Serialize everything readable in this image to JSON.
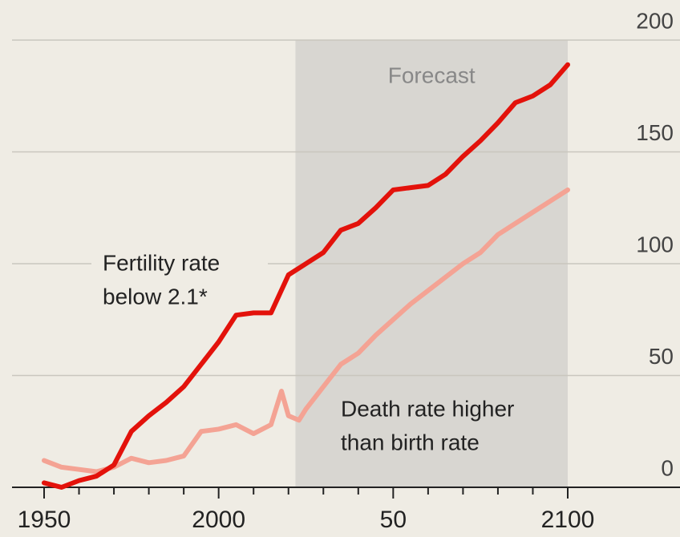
{
  "chart_data": {
    "type": "line",
    "xlim": [
      1950,
      2100
    ],
    "xticks": [
      1950,
      2000,
      {
        "value": 2050,
        "label": "50"
      },
      2100
    ],
    "xminor_ticks": [
      1960,
      1970,
      1980,
      1990,
      2010,
      2020,
      2030,
      2040,
      2060,
      2070,
      2080,
      2090
    ],
    "ylim": [
      0,
      200
    ],
    "yticks": [
      0,
      50,
      100,
      150,
      200
    ],
    "grid": true,
    "forecast": {
      "label": "Forecast",
      "start": 2022,
      "end": 2100
    },
    "series": [
      {
        "label": [
          "Fertility rate",
          "below 2.1*"
        ],
        "color": "#e3120b",
        "x": [
          1950,
          1955,
          1960,
          1965,
          1970,
          1975,
          1980,
          1985,
          1990,
          1995,
          2000,
          2005,
          2010,
          2015,
          2020,
          2025,
          2030,
          2035,
          2040,
          2045,
          2050,
          2055,
          2060,
          2065,
          2070,
          2075,
          2080,
          2085,
          2090,
          2095,
          2100
        ],
        "values": [
          2,
          0,
          3,
          5,
          10,
          25,
          32,
          38,
          45,
          55,
          65,
          77,
          78,
          78,
          95,
          100,
          105,
          115,
          118,
          125,
          133,
          134,
          135,
          140,
          148,
          155,
          163,
          172,
          175,
          180,
          189
        ]
      },
      {
        "label": [
          "Death rate higher",
          "than birth rate"
        ],
        "color": "#f4a394",
        "x": [
          1950,
          1955,
          1960,
          1965,
          1970,
          1975,
          1980,
          1985,
          1990,
          1995,
          2000,
          2005,
          2010,
          2015,
          2018,
          2020,
          2023,
          2025,
          2030,
          2035,
          2040,
          2045,
          2050,
          2055,
          2060,
          2065,
          2070,
          2075,
          2080,
          2085,
          2090,
          2095,
          2100
        ],
        "values": [
          12,
          9,
          8,
          7,
          9,
          13,
          11,
          12,
          14,
          25,
          26,
          28,
          24,
          28,
          43,
          32,
          30,
          35,
          45,
          55,
          60,
          68,
          75,
          82,
          88,
          94,
          100,
          105,
          113,
          118,
          123,
          128,
          133
        ]
      }
    ]
  }
}
